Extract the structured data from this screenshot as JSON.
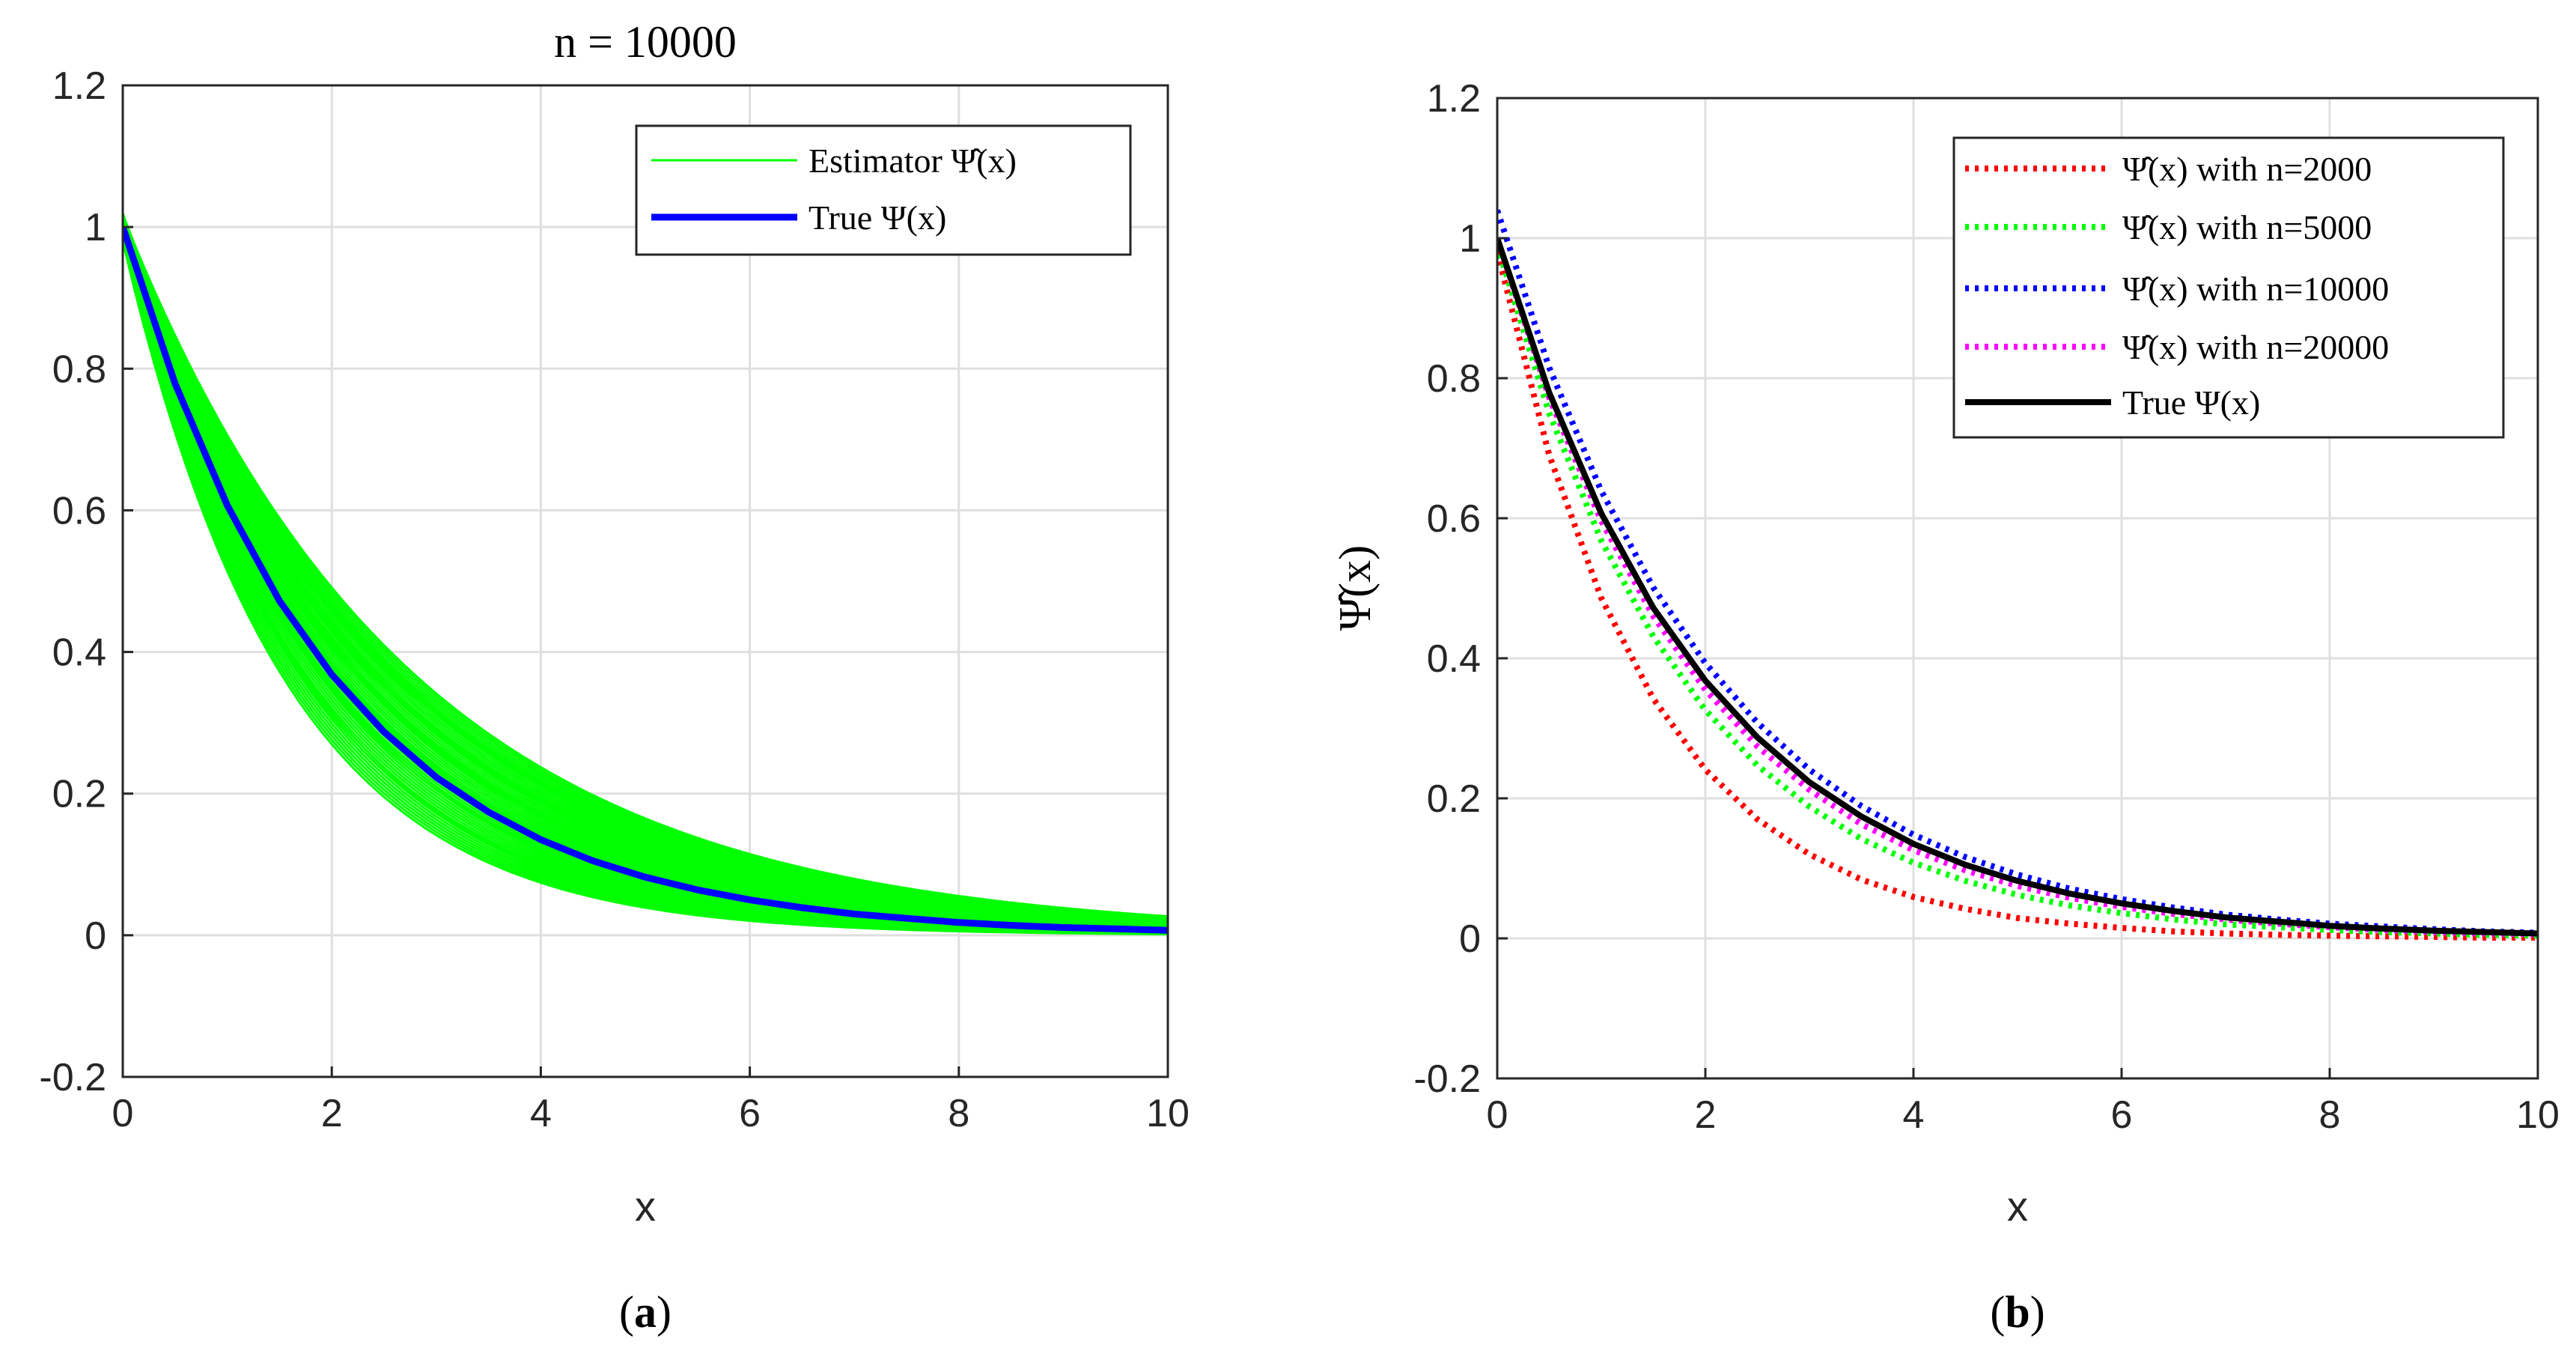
{
  "chart_data": [
    {
      "type": "line",
      "panel_caption_left": "(",
      "panel_caption_letter": "a",
      "panel_caption_right": ")",
      "title": "n = 10000",
      "xlabel": "x",
      "ylabel": "",
      "xlim": [
        0,
        10
      ],
      "ylim": [
        -0.2,
        1.2
      ],
      "xticks": [
        0,
        2,
        4,
        6,
        8,
        10
      ],
      "xtick_labels": [
        "0",
        "2",
        "4",
        "6",
        "8",
        "10"
      ],
      "yticks": [
        -0.2,
        0,
        0.2,
        0.4,
        0.6,
        0.8,
        1,
        1.2
      ],
      "ytick_labels": [
        "-0.2",
        "0",
        "0.2",
        "0.4",
        "0.6",
        "0.8",
        "1",
        "1.2"
      ],
      "grid": true,
      "legend_position": "top-right",
      "legend": [
        {
          "label": "Estimator Ψ̂(x)",
          "color": "#00ff00",
          "style": "solid"
        },
        {
          "label": "True Ψ(x)",
          "color": "#0000ff",
          "style": "solid-thick"
        }
      ],
      "ensemble": {
        "name": "Estimator Ψ̂(x)",
        "count": 60,
        "color": "#00ff00",
        "model": "y = a * exp(-x / s)",
        "a_range": [
          0.98,
          1.02
        ],
        "s_range": [
          1.55,
          2.75
        ]
      },
      "series": [
        {
          "name": "True Ψ(x)",
          "color": "#0000ff",
          "style": "solid",
          "x": [
            0,
            0.5,
            1,
            1.5,
            2,
            2.5,
            3,
            3.5,
            4,
            4.5,
            5,
            5.5,
            6,
            6.5,
            7,
            7.5,
            8,
            8.5,
            9,
            9.5,
            10
          ],
          "y": [
            1.0,
            0.779,
            0.607,
            0.472,
            0.368,
            0.287,
            0.223,
            0.174,
            0.135,
            0.105,
            0.082,
            0.064,
            0.05,
            0.039,
            0.03,
            0.024,
            0.018,
            0.014,
            0.011,
            0.009,
            0.007
          ]
        }
      ]
    },
    {
      "type": "line",
      "panel_caption_left": "(",
      "panel_caption_letter": "b",
      "panel_caption_right": ")",
      "title": "",
      "xlabel": "x",
      "ylabel": "Ψ̂(x)",
      "xlim": [
        0,
        10
      ],
      "ylim": [
        -0.2,
        1.2
      ],
      "xticks": [
        0,
        2,
        4,
        6,
        8,
        10
      ],
      "xtick_labels": [
        "0",
        "2",
        "4",
        "6",
        "8",
        "10"
      ],
      "yticks": [
        -0.2,
        0,
        0.2,
        0.4,
        0.6,
        0.8,
        1,
        1.2
      ],
      "ytick_labels": [
        "-0.2",
        "0",
        "0.2",
        "0.4",
        "0.6",
        "0.8",
        "1",
        "1.2"
      ],
      "grid": true,
      "legend_position": "top-right",
      "series": [
        {
          "name": "Ψ̂(x) with n=2000",
          "color": "#ff0000",
          "style": "dotted",
          "x": [
            0,
            0.5,
            1,
            1.5,
            2,
            2.5,
            3,
            3.5,
            4,
            4.5,
            5,
            5.5,
            6,
            6.5,
            7,
            7.5,
            8,
            8.5,
            9,
            9.5,
            10
          ],
          "y": [
            0.98,
            0.69,
            0.486,
            0.342,
            0.241,
            0.17,
            0.12,
            0.084,
            0.059,
            0.042,
            0.029,
            0.021,
            0.015,
            0.01,
            0.007,
            0.005,
            0.004,
            0.003,
            0.002,
            0.001,
            0.001
          ]
        },
        {
          "name": "Ψ̂(x) with n=5000",
          "color": "#00ff00",
          "style": "dotted",
          "x": [
            0,
            0.5,
            1,
            1.5,
            2,
            2.5,
            3,
            3.5,
            4,
            4.5,
            5,
            5.5,
            6,
            6.5,
            7,
            7.5,
            8,
            8.5,
            9,
            9.5,
            10
          ],
          "y": [
            0.99,
            0.75,
            0.568,
            0.431,
            0.326,
            0.247,
            0.188,
            0.142,
            0.108,
            0.082,
            0.062,
            0.047,
            0.036,
            0.027,
            0.02,
            0.016,
            0.012,
            0.009,
            0.007,
            0.005,
            0.004
          ]
        },
        {
          "name": "Ψ̂(x) with n=10000",
          "color": "#0000ff",
          "style": "dotted",
          "x": [
            0,
            0.5,
            1,
            1.5,
            2,
            2.5,
            3,
            3.5,
            4,
            4.5,
            5,
            5.5,
            6,
            6.5,
            7,
            7.5,
            8,
            8.5,
            9,
            9.5,
            10
          ],
          "y": [
            1.04,
            0.815,
            0.639,
            0.501,
            0.393,
            0.308,
            0.241,
            0.189,
            0.148,
            0.116,
            0.091,
            0.071,
            0.056,
            0.044,
            0.034,
            0.027,
            0.021,
            0.017,
            0.013,
            0.01,
            0.008
          ]
        },
        {
          "name": "Ψ̂(x) with n=20000",
          "color": "#ff00ff",
          "style": "dotted",
          "x": [
            0,
            0.5,
            1,
            1.5,
            2,
            2.5,
            3,
            3.5,
            4,
            4.5,
            5,
            5.5,
            6,
            6.5,
            7,
            7.5,
            8,
            8.5,
            9,
            9.5,
            10
          ],
          "y": [
            1.0,
            0.772,
            0.596,
            0.46,
            0.355,
            0.274,
            0.212,
            0.163,
            0.126,
            0.097,
            0.075,
            0.058,
            0.045,
            0.035,
            0.027,
            0.021,
            0.016,
            0.012,
            0.009,
            0.007,
            0.006
          ]
        },
        {
          "name": "True Ψ(x)",
          "color": "#000000",
          "style": "solid",
          "x": [
            0,
            0.5,
            1,
            1.5,
            2,
            2.5,
            3,
            3.5,
            4,
            4.5,
            5,
            5.5,
            6,
            6.5,
            7,
            7.5,
            8,
            8.5,
            9,
            9.5,
            10
          ],
          "y": [
            1.0,
            0.779,
            0.607,
            0.472,
            0.368,
            0.287,
            0.223,
            0.174,
            0.135,
            0.105,
            0.082,
            0.064,
            0.05,
            0.039,
            0.03,
            0.024,
            0.018,
            0.014,
            0.011,
            0.009,
            0.007
          ]
        }
      ]
    }
  ]
}
